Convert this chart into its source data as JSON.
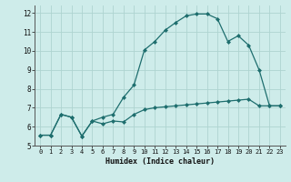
{
  "xlabel": "Humidex (Indice chaleur)",
  "bg_color": "#ceecea",
  "grid_color": "#aed4d0",
  "line_color": "#1e6e6e",
  "marker_color": "#1e6e6e",
  "xlim": [
    -0.5,
    23.5
  ],
  "ylim": [
    5,
    12.4
  ],
  "xticks": [
    0,
    1,
    2,
    3,
    4,
    5,
    6,
    7,
    8,
    9,
    10,
    11,
    12,
    13,
    14,
    15,
    16,
    17,
    18,
    19,
    20,
    21,
    22,
    23
  ],
  "yticks": [
    5,
    6,
    7,
    8,
    9,
    10,
    11,
    12
  ],
  "curve1_x": [
    0,
    1,
    2,
    3,
    4,
    5,
    6,
    7,
    8,
    9,
    10,
    11,
    12,
    13,
    14,
    15,
    16,
    17,
    18,
    19,
    20,
    21,
    22,
    23
  ],
  "curve1_y": [
    5.55,
    5.55,
    6.65,
    6.5,
    5.5,
    6.3,
    6.15,
    6.3,
    6.25,
    6.65,
    6.9,
    7.0,
    7.05,
    7.1,
    7.15,
    7.2,
    7.25,
    7.3,
    7.35,
    7.4,
    7.45,
    7.1,
    7.1,
    7.1
  ],
  "curve2_x": [
    0,
    1,
    2,
    3,
    4,
    5,
    6,
    7,
    8,
    9,
    10,
    11,
    12,
    13,
    14,
    15,
    16,
    17,
    18,
    19,
    20,
    21,
    22,
    23
  ],
  "curve2_y": [
    5.55,
    5.55,
    6.65,
    6.5,
    5.5,
    6.3,
    6.5,
    6.65,
    7.55,
    8.2,
    10.05,
    10.5,
    11.1,
    11.5,
    11.85,
    11.95,
    11.95,
    11.7,
    10.5,
    10.8,
    10.3,
    9.0,
    7.1,
    7.1
  ]
}
